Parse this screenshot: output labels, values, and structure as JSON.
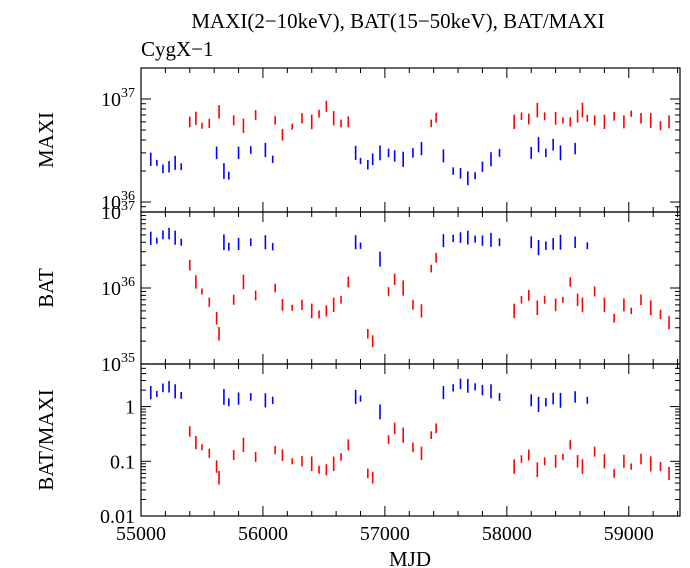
{
  "figure": {
    "title": "MAXI(2−10keV), BAT(15−50keV), BAT/MAXI",
    "subtitle": "CygX−1",
    "xlabel": "MJD",
    "colors": {
      "hard_state": "#0000ff",
      "soft_state": "#ff0000",
      "axes": "#000000"
    }
  },
  "chart_data": [
    {
      "type": "scatter",
      "panel": "MAXI",
      "ylabel": "MAXI",
      "xlim": [
        55000,
        59420
      ],
      "ylim": [
        8e+35,
        2e+37
      ],
      "yscale": "log",
      "xticks": [
        55000,
        56000,
        57000,
        58000,
        59000
      ],
      "yticks": [
        {
          "value": 1e+36,
          "base": "10",
          "exp": "36"
        },
        {
          "value": 1e+37,
          "base": "10",
          "exp": "37"
        }
      ],
      "grid": false,
      "legend": "none",
      "series": [
        {
          "color": "#0000ff",
          "points": [
            [
              55080,
              2.6e+36
            ],
            [
              55130,
              2.4e+36
            ],
            [
              55180,
              2.1e+36
            ],
            [
              55230,
              2.2e+36
            ],
            [
              55280,
              2.4e+36
            ],
            [
              55330,
              2.2e+36
            ],
            [
              55620,
              3e+36
            ],
            [
              55680,
              2e+36
            ],
            [
              55720,
              1.8e+36
            ],
            [
              55800,
              3e+36
            ],
            [
              55900,
              3.2e+36
            ],
            [
              56020,
              3.2e+36
            ],
            [
              56080,
              2.6e+36
            ],
            [
              56760,
              3e+36
            ],
            [
              56800,
              2.5e+36
            ],
            [
              56860,
              2.3e+36
            ],
            [
              56900,
              2.6e+36
            ],
            [
              56960,
              3e+36
            ],
            [
              57030,
              3e+36
            ],
            [
              57080,
              2.8e+36
            ],
            [
              57150,
              2.6e+36
            ],
            [
              57230,
              3e+36
            ],
            [
              57300,
              3.3e+36
            ],
            [
              57480,
              2.8e+36
            ],
            [
              57560,
              2e+36
            ],
            [
              57620,
              1.9e+36
            ],
            [
              57680,
              1.7e+36
            ],
            [
              57740,
              1.8e+36
            ],
            [
              57800,
              2.2e+36
            ],
            [
              57870,
              2.6e+36
            ],
            [
              57940,
              3e+36
            ],
            [
              58200,
              3e+36
            ],
            [
              58260,
              3.6e+36
            ],
            [
              58320,
              3e+36
            ],
            [
              58380,
              3.6e+36
            ],
            [
              58440,
              3e+36
            ],
            [
              58560,
              3.3e+36
            ]
          ]
        },
        {
          "color": "#ff0000",
          "points": [
            [
              55400,
              6e+36
            ],
            [
              55450,
              6.5e+36
            ],
            [
              55500,
              5.5e+36
            ],
            [
              55560,
              5.8e+36
            ],
            [
              55640,
              7.5e+36
            ],
            [
              55760,
              6.2e+36
            ],
            [
              55840,
              5.5e+36
            ],
            [
              55940,
              7e+36
            ],
            [
              56100,
              6.2e+36
            ],
            [
              56160,
              4.5e+36
            ],
            [
              56240,
              5.4e+36
            ],
            [
              56320,
              6.5e+36
            ],
            [
              56400,
              6e+36
            ],
            [
              56460,
              7.2e+36
            ],
            [
              56520,
              8.5e+36
            ],
            [
              56580,
              6.5e+36
            ],
            [
              56640,
              5.8e+36
            ],
            [
              56700,
              6e+36
            ],
            [
              57380,
              5.8e+36
            ],
            [
              57420,
              6.6e+36
            ],
            [
              58060,
              6e+36
            ],
            [
              58120,
              6.8e+36
            ],
            [
              58180,
              6.4e+36
            ],
            [
              58250,
              7.8e+36
            ],
            [
              58310,
              6.8e+36
            ],
            [
              58400,
              6.5e+36
            ],
            [
              58460,
              6.2e+36
            ],
            [
              58520,
              6e+36
            ],
            [
              58580,
              6.8e+36
            ],
            [
              58620,
              7.8e+36
            ],
            [
              58660,
              6.5e+36
            ],
            [
              58720,
              6.2e+36
            ],
            [
              58800,
              6e+36
            ],
            [
              58880,
              6.8e+36
            ],
            [
              58960,
              6e+36
            ],
            [
              59020,
              7.2e+36
            ],
            [
              59100,
              6.5e+36
            ],
            [
              59180,
              6.2e+36
            ],
            [
              59260,
              5.5e+36
            ],
            [
              59330,
              6e+36
            ]
          ]
        }
      ]
    },
    {
      "type": "scatter",
      "panel": "BAT",
      "ylabel": "BAT",
      "xlim": [
        55000,
        59420
      ],
      "ylim": [
        1e+35,
        1e+37
      ],
      "yscale": "log",
      "xticks": [
        55000,
        56000,
        57000,
        58000,
        59000
      ],
      "yticks": [
        {
          "value": 1e+35,
          "base": "10",
          "exp": "35"
        },
        {
          "value": 1e+36,
          "base": "10",
          "exp": "36"
        },
        {
          "value": 1e+37,
          "base": "10",
          "exp": "37"
        }
      ],
      "grid": false,
      "legend": "none",
      "series": [
        {
          "color": "#0000ff",
          "points": [
            [
              55080,
              4.5e+36
            ],
            [
              55130,
              4.2e+36
            ],
            [
              55180,
              5e+36
            ],
            [
              55230,
              5.2e+36
            ],
            [
              55280,
              4.6e+36
            ],
            [
              55330,
              4e+36
            ],
            [
              55680,
              4e+36
            ],
            [
              55720,
              3.5e+36
            ],
            [
              55800,
              3.8e+36
            ],
            [
              55900,
              4e+36
            ],
            [
              56020,
              4e+36
            ],
            [
              56080,
              3.5e+36
            ],
            [
              56760,
              4e+36
            ],
            [
              56800,
              3.6e+36
            ],
            [
              56960,
              2.4e+36
            ],
            [
              57480,
              4.2e+36
            ],
            [
              57560,
              4.5e+36
            ],
            [
              57620,
              4.6e+36
            ],
            [
              57680,
              4.6e+36
            ],
            [
              57740,
              4.4e+36
            ],
            [
              57800,
              4.2e+36
            ],
            [
              57870,
              4.3e+36
            ],
            [
              57940,
              4e+36
            ],
            [
              58200,
              4e+36
            ],
            [
              58260,
              3.4e+36
            ],
            [
              58320,
              3.6e+36
            ],
            [
              58380,
              3.8e+36
            ],
            [
              58440,
              4e+36
            ],
            [
              58560,
              4e+36
            ],
            [
              58660,
              3.6e+36
            ]
          ]
        },
        {
          "color": "#ff0000",
          "points": [
            [
              55400,
              2e+36
            ],
            [
              55450,
              1.2e+36
            ],
            [
              55500,
              9e+35
            ],
            [
              55560,
              6.5e+35
            ],
            [
              55620,
              4e+35
            ],
            [
              55640,
              2.5e+35
            ],
            [
              55760,
              7e+35
            ],
            [
              55840,
              1.2e+36
            ],
            [
              55940,
              8e+35
            ],
            [
              56100,
              1e+36
            ],
            [
              56160,
              6e+35
            ],
            [
              56240,
              5.5e+35
            ],
            [
              56320,
              6e+35
            ],
            [
              56400,
              5e+35
            ],
            [
              56460,
              4.5e+35
            ],
            [
              56520,
              5e+35
            ],
            [
              56580,
              6e+35
            ],
            [
              56640,
              7e+35
            ],
            [
              56700,
              1.2e+36
            ],
            [
              56860,
              2.5e+35
            ],
            [
              56900,
              2e+35
            ],
            [
              57030,
              9e+35
            ],
            [
              57080,
              1.3e+36
            ],
            [
              57150,
              1e+36
            ],
            [
              57230,
              6e+35
            ],
            [
              57300,
              5e+35
            ],
            [
              57380,
              1.8e+36
            ],
            [
              57420,
              2.5e+36
            ],
            [
              58060,
              5e+35
            ],
            [
              58120,
              7e+35
            ],
            [
              58180,
              8e+35
            ],
            [
              58250,
              5.5e+35
            ],
            [
              58310,
              7e+35
            ],
            [
              58400,
              6e+35
            ],
            [
              58460,
              7e+35
            ],
            [
              58520,
              1.2e+36
            ],
            [
              58580,
              7e+35
            ],
            [
              58620,
              6e+35
            ],
            [
              58720,
              9e+35
            ],
            [
              58800,
              6e+35
            ],
            [
              58880,
              4e+35
            ],
            [
              58960,
              6e+35
            ],
            [
              59020,
              5e+35
            ],
            [
              59100,
              7e+35
            ],
            [
              59180,
              5.5e+35
            ],
            [
              59260,
              4.5e+35
            ],
            [
              59330,
              3.5e+35
            ]
          ]
        }
      ]
    },
    {
      "type": "scatter",
      "panel": "BAT/MAXI",
      "ylabel": "BAT/MAXI",
      "xlim": [
        55000,
        59420
      ],
      "ylim": [
        0.01,
        6
      ],
      "yscale": "log",
      "xticks": [
        55000,
        56000,
        57000,
        58000,
        59000
      ],
      "yticks": [
        {
          "value": 0.01,
          "label": "0.01"
        },
        {
          "value": 0.1,
          "label": "0.1"
        },
        {
          "value": 1,
          "label": "1"
        }
      ],
      "grid": false,
      "legend": "none",
      "series": [
        {
          "color": "#0000ff",
          "points": [
            [
              55080,
              1.8
            ],
            [
              55130,
              1.7
            ],
            [
              55180,
              2.2
            ],
            [
              55230,
              2.3
            ],
            [
              55280,
              1.9
            ],
            [
              55330,
              1.6
            ],
            [
              55680,
              1.5
            ],
            [
              55720,
              1.2
            ],
            [
              55800,
              1.4
            ],
            [
              55900,
              1.5
            ],
            [
              56020,
              1.3
            ],
            [
              56080,
              1.3
            ],
            [
              56760,
              1.5
            ],
            [
              56800,
              1.4
            ],
            [
              56960,
              0.8
            ],
            [
              57480,
              1.8
            ],
            [
              57560,
              2.2
            ],
            [
              57620,
              2.6
            ],
            [
              57680,
              2.4
            ],
            [
              57740,
              2.3
            ],
            [
              57800,
              2.0
            ],
            [
              57870,
              1.9
            ],
            [
              57940,
              1.5
            ],
            [
              58200,
              1.3
            ],
            [
              58260,
              1.1
            ],
            [
              58320,
              1.2
            ],
            [
              58380,
              1.4
            ],
            [
              58440,
              1.3
            ],
            [
              58560,
              1.5
            ],
            [
              58660,
              1.3
            ]
          ]
        },
        {
          "color": "#ff0000",
          "points": [
            [
              55400,
              0.35
            ],
            [
              55450,
              0.22
            ],
            [
              55500,
              0.18
            ],
            [
              55560,
              0.14
            ],
            [
              55620,
              0.08
            ],
            [
              55640,
              0.05
            ],
            [
              55760,
              0.13
            ],
            [
              55840,
              0.2
            ],
            [
              55940,
              0.12
            ],
            [
              56100,
              0.16
            ],
            [
              56160,
              0.13
            ],
            [
              56240,
              0.1
            ],
            [
              56320,
              0.1
            ],
            [
              56400,
              0.09
            ],
            [
              56460,
              0.07
            ],
            [
              56520,
              0.07
            ],
            [
              56580,
              0.09
            ],
            [
              56640,
              0.12
            ],
            [
              56700,
              0.2
            ],
            [
              56860,
              0.06
            ],
            [
              56900,
              0.05
            ],
            [
              57030,
              0.25
            ],
            [
              57080,
              0.4
            ],
            [
              57150,
              0.3
            ],
            [
              57230,
              0.18
            ],
            [
              57300,
              0.14
            ],
            [
              57380,
              0.3
            ],
            [
              57420,
              0.4
            ],
            [
              58060,
              0.08
            ],
            [
              58120,
              0.11
            ],
            [
              58180,
              0.13
            ],
            [
              58250,
              0.07
            ],
            [
              58310,
              0.1
            ],
            [
              58400,
              0.1
            ],
            [
              58460,
              0.12
            ],
            [
              58520,
              0.2
            ],
            [
              58580,
              0.1
            ],
            [
              58620,
              0.08
            ],
            [
              58720,
              0.15
            ],
            [
              58800,
              0.1
            ],
            [
              58880,
              0.06
            ],
            [
              58960,
              0.1
            ],
            [
              59020,
              0.08
            ],
            [
              59100,
              0.11
            ],
            [
              59180,
              0.09
            ],
            [
              59260,
              0.08
            ],
            [
              59330,
              0.06
            ]
          ]
        }
      ]
    }
  ]
}
